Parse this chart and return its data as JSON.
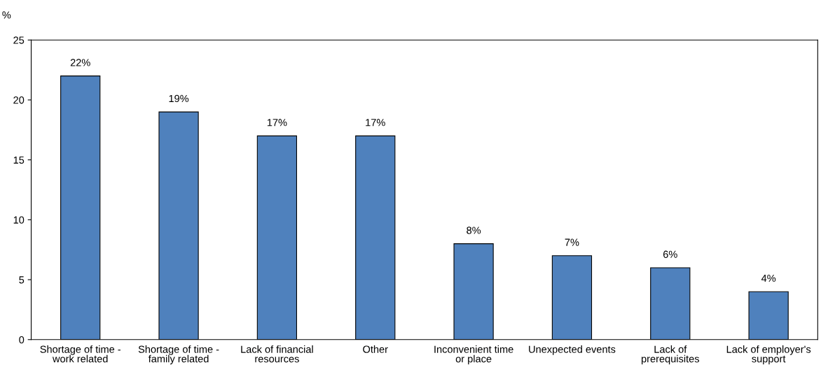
{
  "chart_data": {
    "type": "bar",
    "ylabel": "%",
    "categories": [
      "Shortage of time -\nwork related",
      "Shortage of time -\nfamily related",
      "Lack of financial\nresources",
      "Other",
      "Inconvenient time\nor place",
      "Unexpected events",
      "Lack of\nprerequisites",
      "Lack of employer's\nsupport"
    ],
    "values": [
      22,
      19,
      17,
      17,
      8,
      7,
      6,
      4
    ],
    "value_labels": [
      "22%",
      "19%",
      "17%",
      "17%",
      "8%",
      "7%",
      "6%",
      "4%"
    ],
    "color": "#4f81bd",
    "ylim": [
      0,
      25
    ],
    "yticks": [
      0,
      5,
      10,
      15,
      20,
      25
    ],
    "grid": false,
    "legend": false
  }
}
